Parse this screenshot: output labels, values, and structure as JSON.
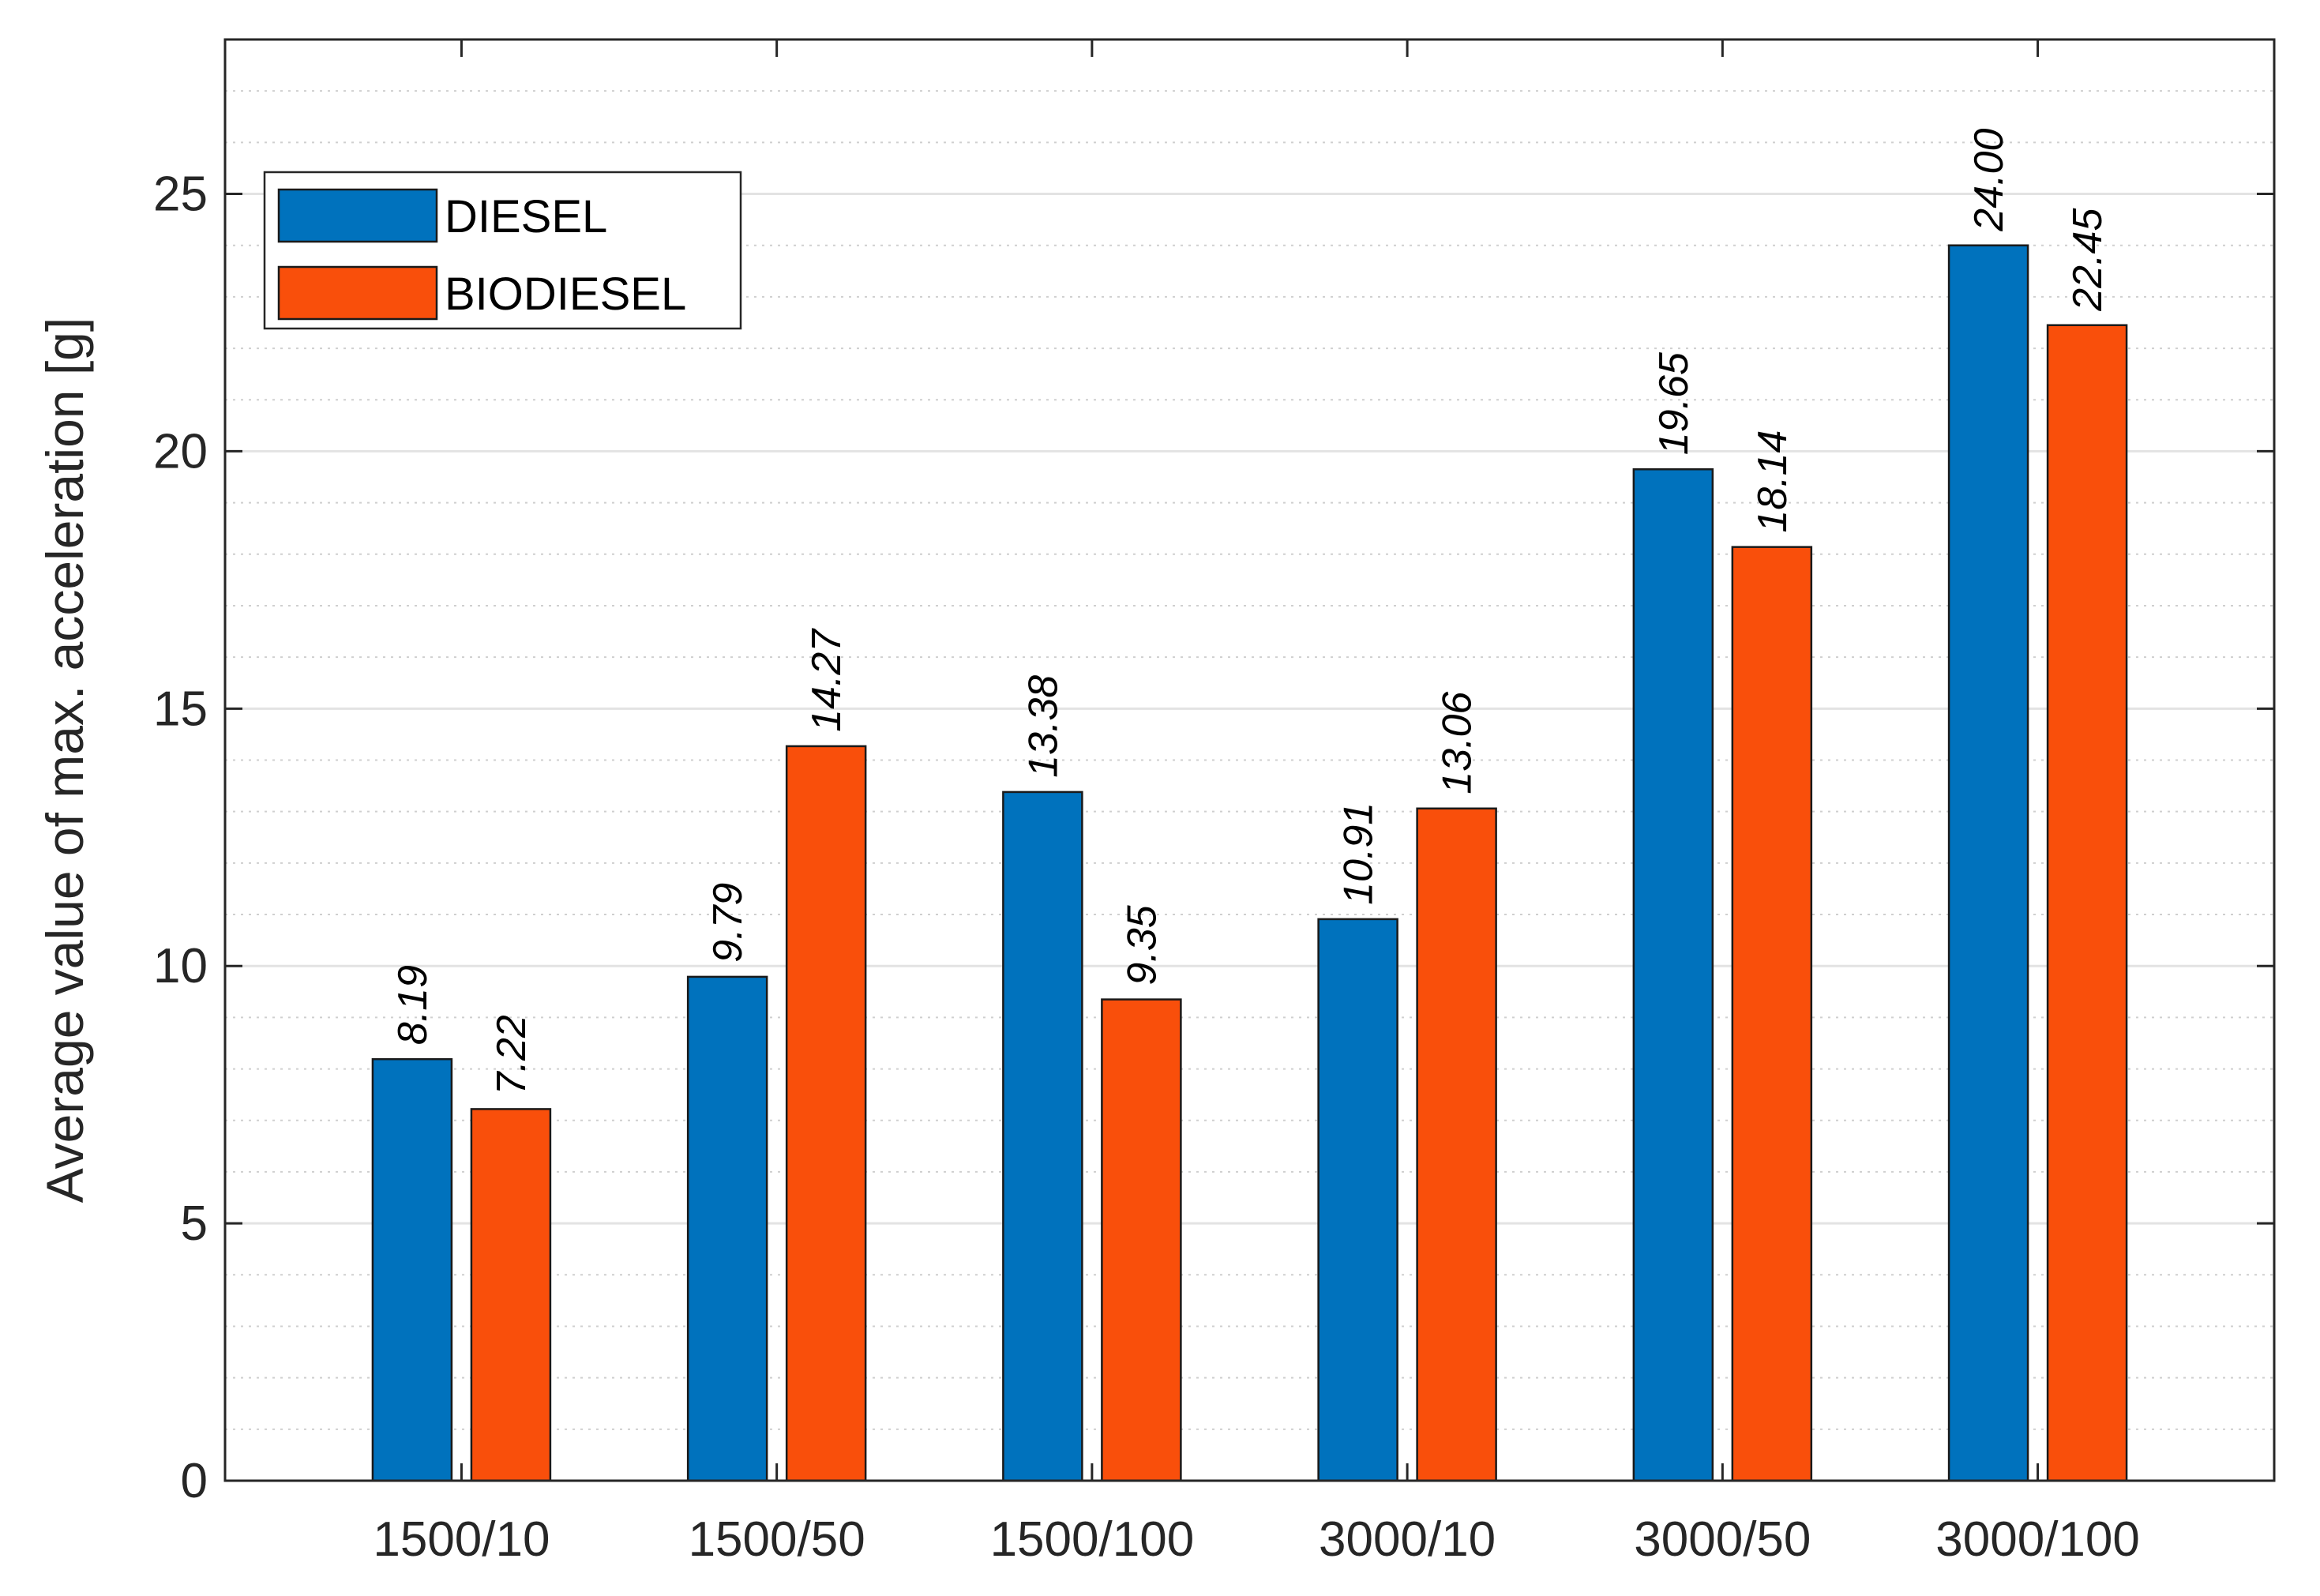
{
  "chart_data": {
    "type": "bar",
    "title": "",
    "xlabel": "",
    "ylabel": "Average value of max. acceleration [g]",
    "categories": [
      "1500/10",
      "1500/50",
      "1500/100",
      "3000/10",
      "3000/50",
      "3000/100"
    ],
    "series": [
      {
        "name": "DIESEL",
        "color": "#0072BD",
        "values": [
          8.19,
          9.79,
          13.38,
          10.91,
          19.65,
          24.0
        ],
        "labels": [
          "8.19",
          "9.79",
          "13.38",
          "10.91",
          "19.65",
          "24.00"
        ]
      },
      {
        "name": "BIODIESEL",
        "color": "#F94F0B",
        "values": [
          7.22,
          14.27,
          9.35,
          13.06,
          18.14,
          22.45
        ],
        "labels": [
          "7.22",
          "14.27",
          "9.35",
          "13.06",
          "18.14",
          "22.45"
        ]
      }
    ],
    "ylim": [
      0,
      28
    ],
    "yticks": [
      0,
      5,
      10,
      15,
      20,
      25
    ],
    "ytick_labels": [
      "0",
      "5",
      "10",
      "15",
      "20",
      "25"
    ],
    "minor_grid_step": 1,
    "grid": true,
    "legend_position": "top-left"
  }
}
